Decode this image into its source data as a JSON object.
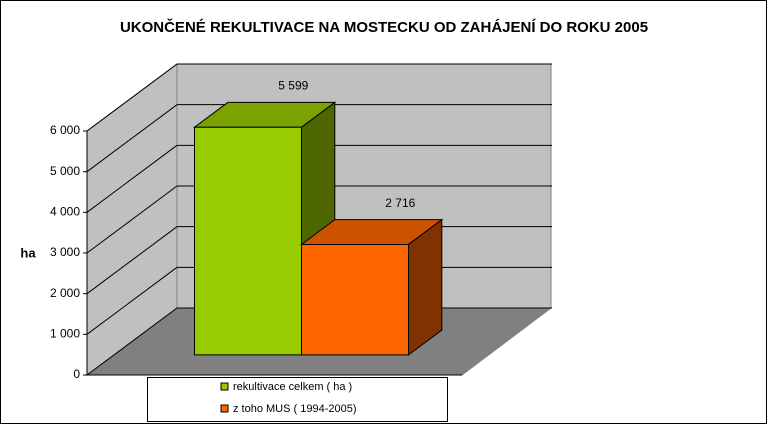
{
  "chart_data": {
    "type": "bar3d",
    "title": "UKONČENÉ REKULTIVACE NA MOSTECKU OD ZAHÁJENÍ DO ROKU 2005",
    "y_label": "ha",
    "categories": [
      null
    ],
    "series": [
      {
        "name": "rekultivace celkem ( ha )",
        "color": "#99cc00",
        "values": [
          5599
        ],
        "value_labels": [
          "5 599"
        ]
      },
      {
        "name": "z toho MUS ( 1994-2005)",
        "color": "#ff6600",
        "values": [
          2716
        ],
        "value_labels": [
          "2 716"
        ]
      }
    ],
    "ylim": [
      0,
      6000
    ],
    "yticks": [
      0,
      {
        "value": 1000,
        "label": "1 000"
      },
      {
        "value": 2000,
        "label": "2 000"
      },
      {
        "value": 3000,
        "label": "3 000"
      },
      {
        "value": 4000,
        "label": "4 000"
      },
      {
        "value": 5000,
        "label": "5 000"
      },
      {
        "value": 6000,
        "label": "6 000"
      }
    ],
    "grid": true
  }
}
